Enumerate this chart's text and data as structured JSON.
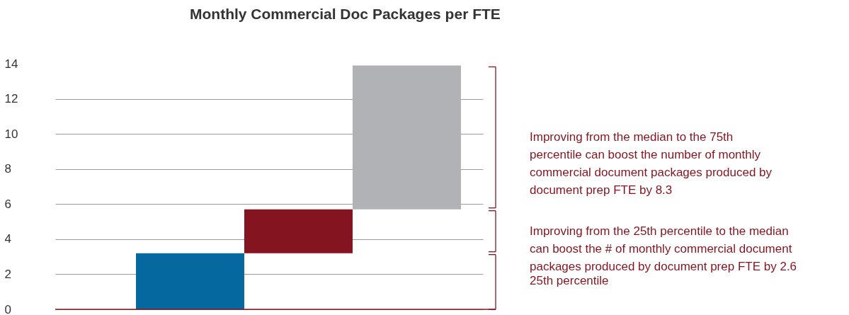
{
  "chart_data": {
    "type": "bar",
    "title": "Monthly Commercial Doc Packages per FTE",
    "categories": [
      null,
      null,
      null
    ],
    "values": [
      3.2,
      2.5,
      8.2
    ],
    "base": [
      0,
      3.2,
      5.7
    ],
    "colors": [
      "#05699f",
      "#84141f",
      "#b1b2b6"
    ],
    "ylim": [
      0,
      14
    ],
    "yticks": [
      0,
      2,
      4,
      6,
      8,
      10,
      12,
      14
    ],
    "grid": "y",
    "annotations": [
      "Improving from the median to the 75th\npercentile can boost the number of monthly\ncommercial document packages produced by\ndocument prep FTE by 8.3",
      "Improving from the 25th percentile to the median\ncan boost the # of monthly commercial document\npackages produced by document prep FTE by 2.6",
      "25th percentile"
    ]
  }
}
